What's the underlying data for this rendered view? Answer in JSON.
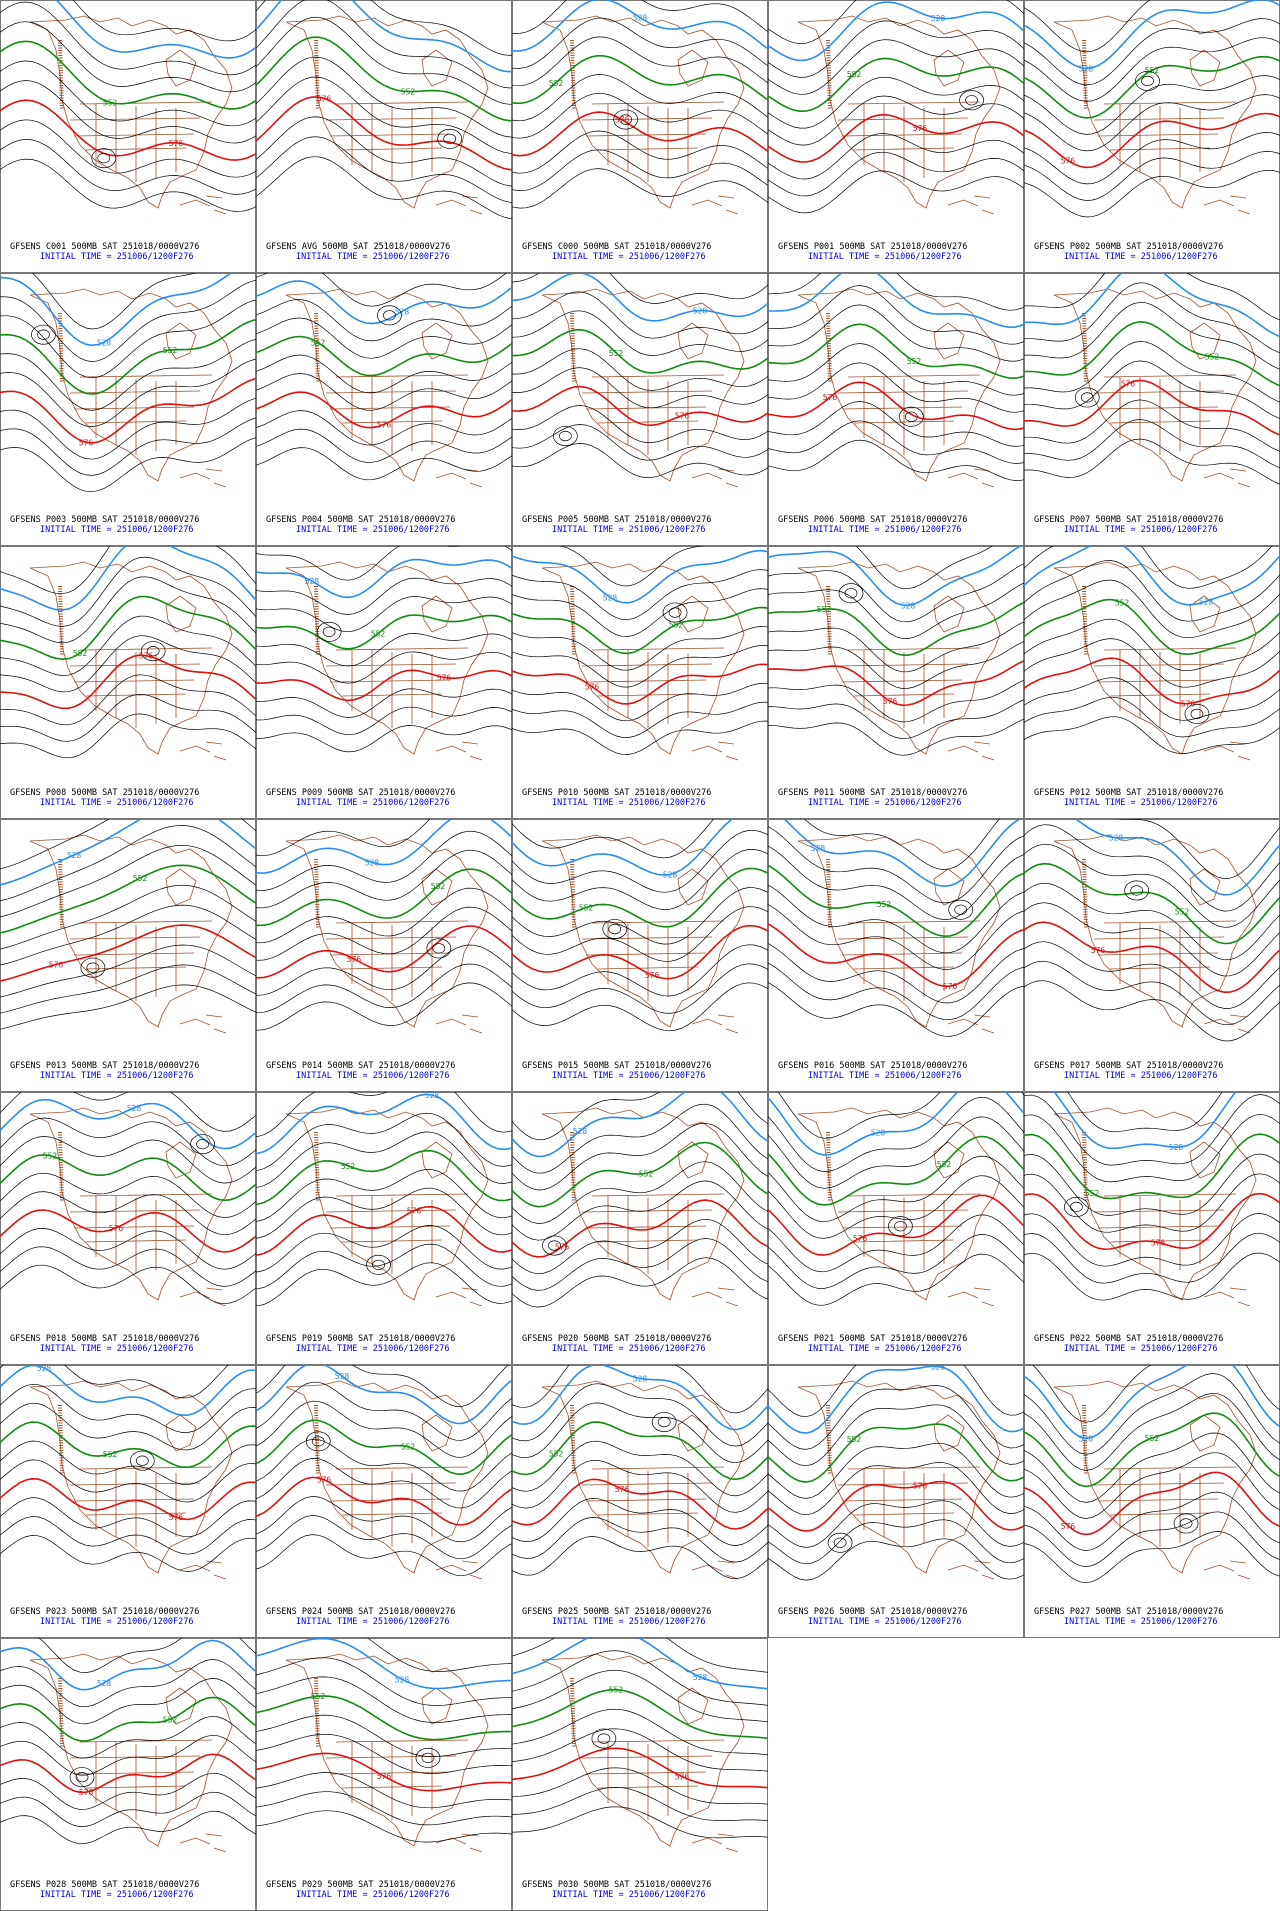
{
  "contour_colors": [
    "#2a8cf0",
    "#138a13",
    "#e01010"
  ],
  "panels": [
    {
      "line1": "GFSENS C001 500MB SAT 251018/0000V276",
      "line2": "INITIAL TIME = 251006/1200F276",
      "contours": [
        "528",
        "552",
        "576"
      ]
    },
    {
      "line1": "GFSENS AVG 500MB SAT 251018/0000V276",
      "line2": "INITIAL TIME = 251006/1200F276",
      "contours": [
        "528",
        "552",
        "576"
      ]
    },
    {
      "line1": "GFSENS C000 500MB SAT 251018/0000V276",
      "line2": "INITIAL TIME = 251006/1200F276",
      "contours": [
        "528",
        "552",
        "576"
      ]
    },
    {
      "line1": "GFSENS P001 500MB SAT 251018/0000V276",
      "line2": "INITIAL TIME = 251006/1200F276",
      "contours": [
        "528",
        "552",
        "576"
      ]
    },
    {
      "line1": "GFSENS P002 500MB SAT 251018/0000V276",
      "line2": "INITIAL TIME = 251006/1200F276",
      "contours": [
        "528",
        "552",
        "576"
      ]
    },
    {
      "line1": "GFSENS P003 500MB SAT 251018/0000V276",
      "line2": "INITIAL TIME = 251006/1200F276",
      "contours": [
        "528",
        "552",
        "576"
      ]
    },
    {
      "line1": "GFSENS P004 500MB SAT 251018/0000V276",
      "line2": "INITIAL TIME = 251006/1200F276",
      "contours": [
        "528",
        "552",
        "576"
      ]
    },
    {
      "line1": "GFSENS P005 500MB SAT 251018/0000V276",
      "line2": "INITIAL TIME = 251006/1200F276",
      "contours": [
        "528",
        "552",
        "576"
      ]
    },
    {
      "line1": "GFSENS P006 500MB SAT 251018/0000V276",
      "line2": "INITIAL TIME = 251006/1200F276",
      "contours": [
        "528",
        "552",
        "576"
      ]
    },
    {
      "line1": "GFSENS P007 500MB SAT 251018/0000V276",
      "line2": "INITIAL TIME = 251006/1200F276",
      "contours": [
        "528",
        "552",
        "576"
      ]
    },
    {
      "line1": "GFSENS P008 500MB SAT 251018/0000V276",
      "line2": "INITIAL TIME = 251006/1200F276",
      "contours": [
        "528",
        "552",
        "576"
      ]
    },
    {
      "line1": "GFSENS P009 500MB SAT 251018/0000V276",
      "line2": "INITIAL TIME = 251006/1200F276",
      "contours": [
        "528",
        "552",
        "576"
      ]
    },
    {
      "line1": "GFSENS P010 500MB SAT 251018/0000V276",
      "line2": "INITIAL TIME = 251006/1200F276",
      "contours": [
        "528",
        "552",
        "576"
      ]
    },
    {
      "line1": "GFSENS P011 500MB SAT 251018/0000V276",
      "line2": "INITIAL TIME = 251006/1200F276",
      "contours": [
        "528",
        "552",
        "576"
      ]
    },
    {
      "line1": "GFSENS P012 500MB SAT 251018/0000V276",
      "line2": "INITIAL TIME = 251006/1200F276",
      "contours": [
        "528",
        "552",
        "576"
      ]
    },
    {
      "line1": "GFSENS P013 500MB SAT 251018/0000V276",
      "line2": "INITIAL TIME = 251006/1200F276",
      "contours": [
        "528",
        "552",
        "576"
      ]
    },
    {
      "line1": "GFSENS P014 500MB SAT 251018/0000V276",
      "line2": "INITIAL TIME = 251006/1200F276",
      "contours": [
        "528",
        "552",
        "576"
      ]
    },
    {
      "line1": "GFSENS P015 500MB SAT 251018/0000V276",
      "line2": "INITIAL TIME = 251006/1200F276",
      "contours": [
        "528",
        "552",
        "576"
      ]
    },
    {
      "line1": "GFSENS P016 500MB SAT 251018/0000V276",
      "line2": "INITIAL TIME = 251006/1200F276",
      "contours": [
        "528",
        "552",
        "576"
      ]
    },
    {
      "line1": "GFSENS P017 500MB SAT 251018/0000V276",
      "line2": "INITIAL TIME = 251006/1200F276",
      "contours": [
        "528",
        "552",
        "576"
      ]
    },
    {
      "line1": "GFSENS P018 500MB SAT 251018/0000V276",
      "line2": "INITIAL TIME = 251006/1200F276",
      "contours": [
        "528",
        "552",
        "576"
      ]
    },
    {
      "line1": "GFSENS P019 500MB SAT 251018/0000V276",
      "line2": "INITIAL TIME = 251006/1200F276",
      "contours": [
        "528",
        "552",
        "576"
      ]
    },
    {
      "line1": "GFSENS P020 500MB SAT 251018/0000V276",
      "line2": "INITIAL TIME = 251006/1200F276",
      "contours": [
        "528",
        "552",
        "576"
      ]
    },
    {
      "line1": "GFSENS P021 500MB SAT 251018/0000V276",
      "line2": "INITIAL TIME = 251006/1200F276",
      "contours": [
        "528",
        "552",
        "576"
      ]
    },
    {
      "line1": "GFSENS P022 500MB SAT 251018/0000V276",
      "line2": "INITIAL TIME = 251006/1200F276",
      "contours": [
        "528",
        "552",
        "576"
      ]
    },
    {
      "line1": "GFSENS P023 500MB SAT 251018/0000V276",
      "line2": "INITIAL TIME = 251006/1200F276",
      "contours": [
        "528",
        "552",
        "576"
      ]
    },
    {
      "line1": "GFSENS P024 500MB SAT 251018/0000V276",
      "line2": "INITIAL TIME = 251006/1200F276",
      "contours": [
        "528",
        "552",
        "576"
      ]
    },
    {
      "line1": "GFSENS P025 500MB SAT 251018/0000V276",
      "line2": "INITIAL TIME = 251006/1200F276",
      "contours": [
        "528",
        "552",
        "576"
      ]
    },
    {
      "line1": "GFSENS P026 500MB SAT 251018/0000V276",
      "line2": "INITIAL TIME = 251006/1200F276",
      "contours": [
        "528",
        "552",
        "576"
      ]
    },
    {
      "line1": "GFSENS P027 500MB SAT 251018/0000V276",
      "line2": "INITIAL TIME = 251006/1200F276",
      "contours": [
        "528",
        "552",
        "576"
      ]
    },
    {
      "line1": "GFSENS P028 500MB SAT 251018/0000V276",
      "line2": "INITIAL TIME = 251006/1200F276",
      "contours": [
        "528",
        "552",
        "576"
      ]
    },
    {
      "line1": "GFSENS P029 500MB SAT 251018/0000V276",
      "line2": "INITIAL TIME = 251006/1200F276",
      "contours": [
        "528",
        "552",
        "576"
      ]
    },
    {
      "line1": "GFSENS P030 500MB SAT 251018/0000V276",
      "line2": "INITIAL TIME = 251006/1200F276",
      "contours": [
        "528",
        "552",
        "576"
      ]
    }
  ]
}
